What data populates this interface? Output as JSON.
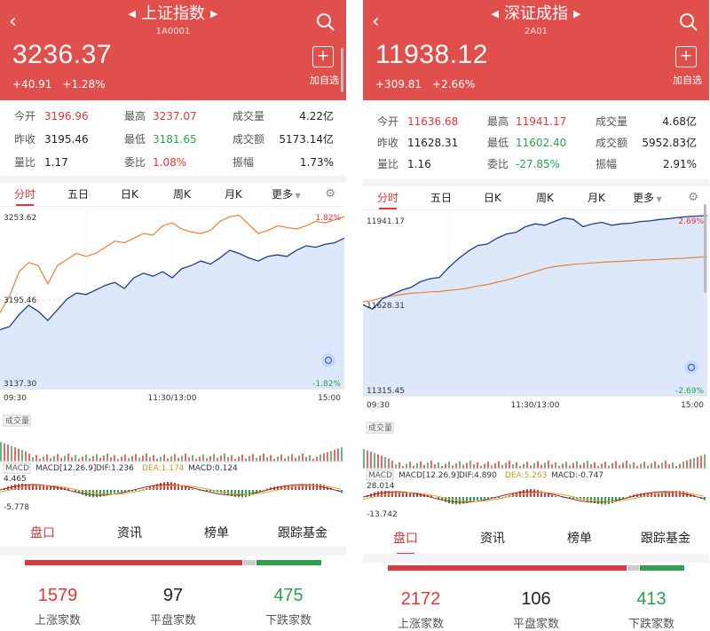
{
  "colors": {
    "header_bg": "#e04f4c",
    "up": "#e0373a",
    "down": "#2fa04d",
    "price_line": "#1f3f8c",
    "avg_line": "#e8823a",
    "area_fill": "#dde8fb"
  },
  "icons": {
    "back": "chevron-left-icon",
    "search": "search-icon",
    "add": "plus-icon",
    "settings": "gear-icon",
    "prev": "triangle-left-icon",
    "next": "triangle-right-icon",
    "refresh": "refresh-icon"
  },
  "panels": [
    {
      "title": "上证指数",
      "code": "1A0001",
      "price": "3236.37",
      "change": "+40.91",
      "change_pct": "+1.28%",
      "add_label": "加自选",
      "stats": [
        {
          "k": "今开",
          "v": "3196.96",
          "c": "red"
        },
        {
          "k": "最高",
          "v": "3237.07",
          "c": "red"
        },
        {
          "k": "成交量",
          "v": "4.22亿",
          "c": "dark"
        },
        {
          "k": "昨收",
          "v": "3195.46",
          "c": "dark"
        },
        {
          "k": "最低",
          "v": "3181.65",
          "c": "green"
        },
        {
          "k": "成交额",
          "v": "5173.14亿",
          "c": "dark"
        },
        {
          "k": "量比",
          "v": "1.17",
          "c": "dark"
        },
        {
          "k": "委比",
          "v": "1.08%",
          "c": "red"
        },
        {
          "k": "振幅",
          "v": "1.73%",
          "c": "dark"
        }
      ],
      "tabs": [
        "分时",
        "五日",
        "日K",
        "周K",
        "月K",
        "更多"
      ],
      "chart": {
        "y_top": "3253.62",
        "y_mid": "3195.46",
        "y_bottom": "3137.30",
        "pct_top": "1.82%",
        "pct_bottom": "-1.82%",
        "t_start": "09:30",
        "t_mid": "11:30/13:00",
        "t_end": "15:00",
        "vol_label": "成交量",
        "macd_label": "MACD",
        "macd_params": "MACD[12.26.9]",
        "dif": "DIF:1.236",
        "dea": "DEA:1.174",
        "macd": "MACD:0.124",
        "macd_top": "4.465",
        "macd_bottom": "-5.778",
        "price": [
          3176,
          3178,
          3186,
          3192,
          3188,
          3182,
          3189,
          3196,
          3200,
          3199,
          3202,
          3205,
          3207,
          3203,
          3210,
          3213,
          3211,
          3214,
          3210,
          3216,
          3218,
          3221,
          3219,
          3223,
          3228,
          3226,
          3223,
          3221,
          3224,
          3225,
          3224,
          3228,
          3231,
          3230,
          3232,
          3233,
          3236
        ],
        "avg": [
          3187,
          3198,
          3214,
          3220,
          3218,
          3206,
          3218,
          3222,
          3226,
          3224,
          3226,
          3230,
          3234,
          3233,
          3236,
          3239,
          3238,
          3244,
          3246,
          3242,
          3240,
          3239,
          3241,
          3247,
          3250,
          3251,
          3245,
          3239,
          3241,
          3244,
          3243,
          3242,
          3244,
          3247,
          3246,
          3248,
          3250
        ]
      },
      "bottom_tabs": [
        "盘口",
        "资讯",
        "榜单",
        "跟踪基金"
      ],
      "breadth": {
        "up": 1579,
        "flat": 97,
        "down": 475,
        "up_label": "上涨家数",
        "flat_label": "平盘家数",
        "down_label": "下跌家数"
      }
    },
    {
      "title": "深证成指",
      "code": "2A01",
      "price": "11938.12",
      "change": "+309.81",
      "change_pct": "+2.66%",
      "add_label": "加自选",
      "stats": [
        {
          "k": "今开",
          "v": "11636.68",
          "c": "red"
        },
        {
          "k": "最高",
          "v": "11941.17",
          "c": "red"
        },
        {
          "k": "成交量",
          "v": "4.68亿",
          "c": "dark"
        },
        {
          "k": "昨收",
          "v": "11628.31",
          "c": "dark"
        },
        {
          "k": "最低",
          "v": "11602.40",
          "c": "green"
        },
        {
          "k": "成交额",
          "v": "5952.83亿",
          "c": "dark"
        },
        {
          "k": "量比",
          "v": "1.16",
          "c": "dark"
        },
        {
          "k": "委比",
          "v": "-27.85%",
          "c": "green"
        },
        {
          "k": "振幅",
          "v": "2.91%",
          "c": "dark"
        }
      ],
      "tabs": [
        "分时",
        "五日",
        "日K",
        "周K",
        "月K",
        "更多"
      ],
      "chart": {
        "y_top": "11941.17",
        "y_mid": "11628.31",
        "y_bottom": "11315.45",
        "pct_top": "2.69%",
        "pct_bottom": "-2.69%",
        "t_start": "09:30",
        "t_mid": "11:30/13:00",
        "t_end": "15:00",
        "vol_label": "成交量",
        "macd_label": "MACD",
        "macd_params": "MACD[12.26.9]",
        "dif": "DIF:4.890",
        "dea": "DEA:5.263",
        "macd": "MACD:-0.747",
        "macd_top": "28.014",
        "macd_bottom": "-13.742",
        "price": [
          11630,
          11615,
          11650,
          11665,
          11680,
          11690,
          11710,
          11720,
          11725,
          11760,
          11790,
          11815,
          11835,
          11840,
          11860,
          11875,
          11880,
          11900,
          11910,
          11905,
          11918,
          11930,
          11925,
          11900,
          11910,
          11915,
          11905,
          11910,
          11912,
          11918,
          11920,
          11925,
          11928,
          11932,
          11935,
          11937,
          11938
        ],
        "avg": [
          11640,
          11645,
          11655,
          11660,
          11665,
          11670,
          11672,
          11675,
          11676,
          11680,
          11683,
          11688,
          11695,
          11700,
          11708,
          11715,
          11725,
          11735,
          11745,
          11755,
          11762,
          11766,
          11770,
          11772,
          11775,
          11777,
          11779,
          11780,
          11782,
          11784,
          11785,
          11787,
          11789,
          11790,
          11792,
          11794,
          11796
        ]
      },
      "bottom_tabs": [
        "盘口",
        "资讯",
        "榜单",
        "跟踪基金"
      ],
      "breadth": {
        "up": 2172,
        "flat": 106,
        "down": 413,
        "up_label": "上涨家数",
        "flat_label": "平盘家数",
        "down_label": "下跌家数"
      }
    }
  ]
}
